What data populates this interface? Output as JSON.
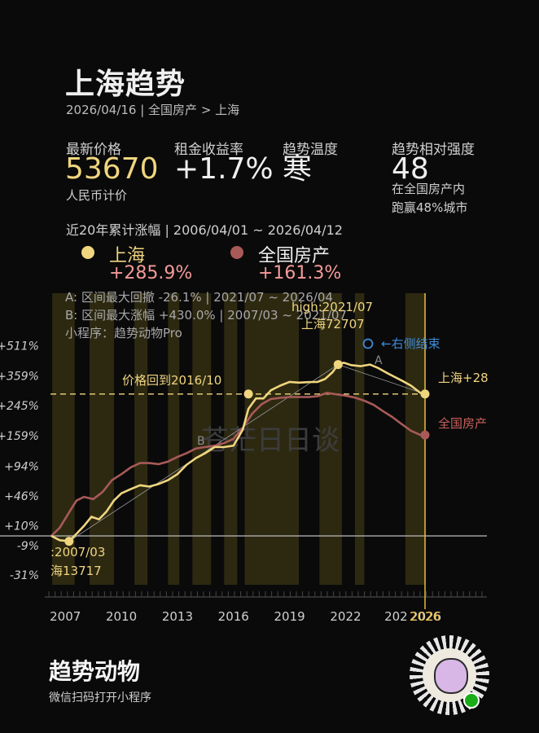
{
  "header": {
    "title": "上海趋势",
    "breadcrumb": "2026/04/16 | 全国房产 > 上海"
  },
  "stats": {
    "price_label": "最新价格",
    "price_value": "53670",
    "price_unit": "人民币计价",
    "rent_label": "租金收益率",
    "rent_value": "+1.7%",
    "temp_label": "趋势温度",
    "temp_value": "寒",
    "strength_label": "趋势相对强度",
    "strength_value": "48",
    "strength_line1": "在全国房产内",
    "strength_line2": "跑赢48%城市"
  },
  "range_text": "近20年累计涨幅 | 2006/04/01 ~ 2026/04/12",
  "legend": {
    "items": [
      {
        "name": "上海",
        "change": "+285.9%",
        "color": "#f0d57f"
      },
      {
        "name": "全国房产",
        "change": "+161.3%",
        "color": "#a85a58"
      }
    ]
  },
  "chart_data": {
    "type": "line",
    "x_range": [
      "2006/04",
      "2026/04"
    ],
    "xtick_labels": [
      "2007",
      "2010",
      "2013",
      "2016",
      "2019",
      "2022",
      "202",
      "2026"
    ],
    "ytick_labels": [
      "+511%",
      "+359%",
      "+245%",
      "+159%",
      "+94%",
      "+46%",
      "+10%",
      "-9%",
      "-31%"
    ],
    "series": [
      {
        "name": "上海",
        "color": "#f0d57f",
        "x": [
          2006.25,
          2006.7,
          2007.2,
          2007.6,
          2008.0,
          2008.4,
          2008.8,
          2009.2,
          2009.6,
          2010.0,
          2010.5,
          2011.0,
          2011.5,
          2012.0,
          2012.5,
          2013.0,
          2013.5,
          2014.0,
          2014.5,
          2015.0,
          2015.5,
          2016.0,
          2016.5,
          2016.8,
          2017.2,
          2017.6,
          2018.0,
          2018.5,
          2019.0,
          2019.5,
          2020.0,
          2020.5,
          2020.9,
          2021.3,
          2021.6,
          2021.9,
          2022.3,
          2022.8,
          2023.3,
          2023.7,
          2024.2,
          2024.6,
          2025.0,
          2025.5,
          2026.0,
          2026.3
        ],
        "y": [
          0,
          -4,
          -5,
          2,
          10,
          20,
          17,
          26,
          40,
          50,
          56,
          62,
          60,
          64,
          70,
          80,
          97,
          110,
          120,
          133,
          133,
          136,
          175,
          235,
          270,
          270,
          300,
          318,
          333,
          330,
          332,
          333,
          345,
          375,
          411,
          420,
          408,
          403,
          411,
          396,
          372,
          355,
          339,
          318,
          290,
          285.9
        ]
      },
      {
        "name": "全国房产",
        "color": "#a85a58",
        "x": [
          2006.25,
          2006.7,
          2007.2,
          2007.6,
          2008.0,
          2008.5,
          2009.0,
          2009.5,
          2010.0,
          2010.5,
          2011.0,
          2011.5,
          2012.0,
          2012.5,
          2013.0,
          2013.5,
          2014.0,
          2014.5,
          2015.0,
          2015.5,
          2016.0,
          2016.5,
          2017.0,
          2017.5,
          2018.0,
          2018.5,
          2019.0,
          2019.5,
          2020.0,
          2020.5,
          2021.0,
          2021.5,
          2022.0,
          2022.5,
          2023.0,
          2023.5,
          2024.0,
          2024.5,
          2025.0,
          2025.5,
          2026.0,
          2026.3
        ],
        "y": [
          0,
          8,
          25,
          40,
          45,
          42,
          52,
          70,
          80,
          92,
          100,
          100,
          98,
          103,
          112,
          120,
          130,
          133,
          136,
          142,
          152,
          180,
          220,
          250,
          268,
          272,
          275,
          275,
          275,
          278,
          290,
          285,
          280,
          273,
          262,
          248,
          228,
          210,
          190,
          172,
          161.3,
          161.3
        ]
      }
    ],
    "reference_lines": [
      {
        "label": "价格回到2016/10",
        "y": 285.9
      },
      {
        "label": "",
        "x": 2026.25
      }
    ],
    "annotations": {
      "stat_a": "A: 区间最大回撤 -26.1% | 2021/07 ~ 2026/04",
      "stat_b": "B: 区间最大涨幅 +430.0% | 2007/03 ~ 2021/07",
      "miniprogram": "小程序：趋势动物Pro",
      "low_date": ":2007/03",
      "low_value": "海13717",
      "high_date": "high:2021/07",
      "high_value": "上海72707",
      "marker_a": "A",
      "marker_b": "B",
      "right_end": "←右侧结束",
      "end_label_1": "上海+28",
      "end_label_2": "全国房产",
      "watermark": "苍茫日日谈",
      "current_year": "2026"
    },
    "shaded_periods": [
      [
        2006.3,
        2007.5
      ],
      [
        2008.3,
        2009.6
      ],
      [
        2010.7,
        2011.4
      ],
      [
        2012.5,
        2013.1
      ],
      [
        2013.8,
        2014.8
      ],
      [
        2015.5,
        2016.2
      ],
      [
        2016.6,
        2019.5
      ],
      [
        2020.6,
        2021.8
      ],
      [
        2022.5,
        2023.0
      ],
      [
        2025.2,
        2026.3
      ]
    ],
    "grid": false
  },
  "footer": {
    "brand": "趋势动物",
    "subtitle": "微信扫码打开小程序"
  }
}
